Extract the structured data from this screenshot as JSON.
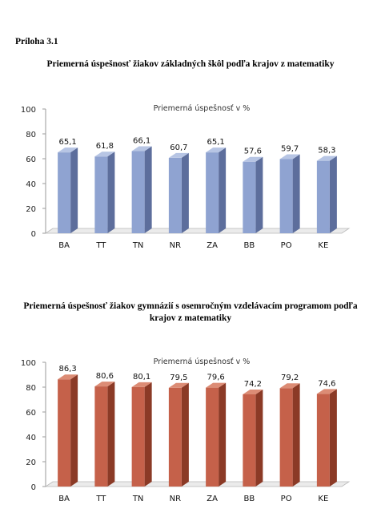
{
  "annex_label": "Príloha 3.1",
  "chart_data": [
    {
      "type": "bar",
      "heading": "Priemerná úspešnosť žiakov základných škôl podľa krajov z matematiky",
      "title": "Priemerná úspešnosť v %",
      "categories": [
        "BA",
        "TT",
        "TN",
        "NR",
        "ZA",
        "BB",
        "PO",
        "KE"
      ],
      "values": [
        65.1,
        61.8,
        66.1,
        60.7,
        65.1,
        57.6,
        59.7,
        58.3
      ],
      "value_labels": [
        "65,1",
        "61,8",
        "66,1",
        "60,7",
        "65,1",
        "57,6",
        "59,7",
        "58,3"
      ],
      "ylim": [
        0,
        100
      ],
      "yticks": [
        "0",
        "20",
        "40",
        "60",
        "80",
        "100"
      ],
      "grid": false,
      "legend": "none",
      "style": "3d-bar",
      "colors": {
        "front": "#8fa3d1",
        "side": "#5d6e9c",
        "top": "#b7c5e4"
      }
    },
    {
      "type": "bar",
      "heading": "Priemerná úspešnosť žiakov gymnázií s osemročným vzdelávacím programom podľa krajov z matematiky",
      "title": "Priemerná úspešnosť v %",
      "categories": [
        "BA",
        "TT",
        "TN",
        "NR",
        "ZA",
        "BB",
        "PO",
        "KE"
      ],
      "values": [
        86.3,
        80.6,
        80.1,
        79.5,
        79.6,
        74.2,
        79.2,
        74.6
      ],
      "value_labels": [
        "86,3",
        "80,6",
        "80,1",
        "79,5",
        "79,6",
        "74,2",
        "79,2",
        "74,6"
      ],
      "ylim": [
        0,
        100
      ],
      "yticks": [
        "0",
        "20",
        "40",
        "60",
        "80",
        "100"
      ],
      "grid": false,
      "legend": "none",
      "style": "3d-bar",
      "colors": {
        "front": "#c5614a",
        "side": "#8b3a26",
        "top": "#dc8c75"
      }
    }
  ]
}
